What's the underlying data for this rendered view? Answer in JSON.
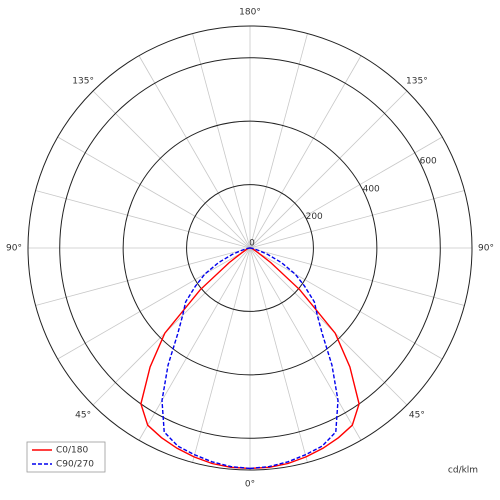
{
  "chart_data": {
    "type": "polar",
    "x": [
      0,
      5,
      10,
      15,
      20,
      25,
      30,
      35,
      40,
      45,
      50,
      55,
      60,
      65,
      70,
      75,
      80,
      85,
      90
    ],
    "series": [
      {
        "name": "C0/180",
        "color": "#ff0000",
        "dashed": false,
        "values": [
          695,
          694,
          690,
          682,
          672,
          660,
          645,
          600,
          490,
          380,
          205,
          80,
          30,
          15,
          10,
          8,
          5,
          3,
          0
        ]
      },
      {
        "name": "C90/270",
        "color": "#0000ee",
        "dashed": true,
        "values": [
          695,
          692,
          685,
          675,
          665,
          640,
          555,
          450,
          355,
          300,
          265,
          210,
          165,
          110,
          60,
          25,
          10,
          3,
          0
        ]
      }
    ],
    "rlim": [
      0,
      700
    ],
    "rticks": [
      0,
      200,
      400,
      600
    ],
    "angle_ticks": [
      {
        "value": 0,
        "label": "0°"
      },
      {
        "value": 45,
        "label": "45°"
      },
      {
        "value": 90,
        "label": "90°"
      },
      {
        "value": 135,
        "label": "135°"
      },
      {
        "value": 180,
        "label": "180°"
      }
    ],
    "angle_grid_step": 15,
    "unit_label": "cd/klm",
    "legend": "lower left"
  }
}
